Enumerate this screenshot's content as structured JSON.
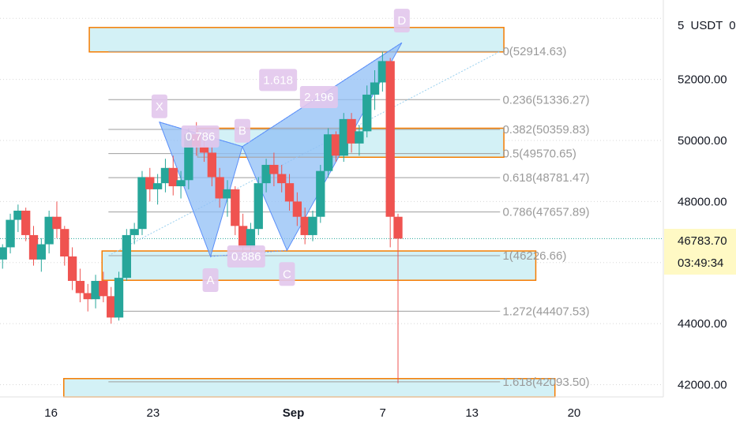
{
  "colors": {
    "up": "#26a69a",
    "down": "#ef5350",
    "zone_fill": "#d3f1f6",
    "zone_border": "#f57c00",
    "harmonic_fill": "#90bff5",
    "harmonic_stroke": "#5b8ff9",
    "point_label_bg": "#e2c7ec",
    "ratio_label_bg": "#e2c7ec",
    "fib_line": "#9e9e9e",
    "grid": "#d8d8d8",
    "last_price_bg": "#fff9c4"
  },
  "chart_data": {
    "type": "candlestick",
    "currency_label": "USDT",
    "currency_prefix": "5",
    "currency_suffix": "0",
    "y_axis": {
      "range": [
        41600,
        54600
      ],
      "ticks": [
        {
          "value": 52000,
          "label": "52000.00"
        },
        {
          "value": 50000,
          "label": "50000.00"
        },
        {
          "value": 48000,
          "label": "48000.00"
        },
        {
          "value": 44000,
          "label": "44000.00"
        },
        {
          "value": 42000,
          "label": "42000.00"
        }
      ]
    },
    "x_axis": {
      "range": [
        0,
        52
      ],
      "ticks": [
        {
          "x": 4,
          "label": "16",
          "bold": false
        },
        {
          "x": 12,
          "label": "23",
          "bold": false
        },
        {
          "x": 23,
          "label": "Sep",
          "bold": true
        },
        {
          "x": 30,
          "label": "7",
          "bold": false
        },
        {
          "x": 37,
          "label": "13",
          "bold": false
        },
        {
          "x": 45,
          "label": "20",
          "bold": false
        }
      ]
    },
    "last_price": {
      "value": 46783.7,
      "label": "46783.70",
      "countdown": "03:49:34"
    },
    "fib_levels": [
      {
        "ratio": "0",
        "price": 52914.63,
        "label": "0(52914.63)"
      },
      {
        "ratio": "0.236",
        "price": 51336.27,
        "label": "0.236(51336.27)"
      },
      {
        "ratio": "0.382",
        "price": 50359.83,
        "label": "0.382(50359.83)"
      },
      {
        "ratio": "0.5",
        "price": 49570.65,
        "label": "0.5(49570.65)"
      },
      {
        "ratio": "0.618",
        "price": 48781.47,
        "label": "0.618(48781.47)"
      },
      {
        "ratio": "0.786",
        "price": 47657.89,
        "label": "0.786(47657.89)"
      },
      {
        "ratio": "1",
        "price": 46226.66,
        "label": "1(46226.66)"
      },
      {
        "ratio": "1.272",
        "price": 44407.53,
        "label": "1.272(44407.53)"
      },
      {
        "ratio": "1.618",
        "price": 42093.5,
        "label": "1.618(42093.50)"
      }
    ],
    "zones": [
      {
        "x1": 7,
        "x2": 39.5,
        "y_top": 53700,
        "y_bottom": 52900
      },
      {
        "x1": 15.5,
        "x2": 39.5,
        "y_top": 50400,
        "y_bottom": 49450
      },
      {
        "x1": 8,
        "x2": 42,
        "y_top": 46380,
        "y_bottom": 45420
      },
      {
        "x1": 5,
        "x2": 43.5,
        "y_top": 42200,
        "y_bottom": 41600
      }
    ],
    "harmonic_pattern": {
      "points": [
        {
          "name": "X",
          "x": 12.5,
          "price": 50600
        },
        {
          "name": "A",
          "x": 16.5,
          "price": 46200
        },
        {
          "name": "B",
          "x": 19,
          "price": 49800
        },
        {
          "name": "C",
          "x": 22.5,
          "price": 46400
        },
        {
          "name": "D",
          "x": 31.5,
          "price": 53200
        }
      ],
      "ratios": [
        {
          "label": "0.786",
          "x": 15.7,
          "price": 50130
        },
        {
          "label": "0.886",
          "x": 19.3,
          "price": 46200
        },
        {
          "label": "1.618",
          "x": 21.8,
          "price": 51980
        },
        {
          "label": "2.196",
          "x": 25,
          "price": 51420
        }
      ]
    },
    "candles": [
      [
        46100,
        46600,
        45800,
        46500
      ],
      [
        46500,
        47600,
        46300,
        47400
      ],
      [
        47400,
        47900,
        47000,
        47700
      ],
      [
        47700,
        47800,
        46700,
        46900
      ],
      [
        46900,
        47200,
        45900,
        46100
      ],
      [
        46100,
        46800,
        45700,
        46600
      ],
      [
        46600,
        47700,
        46300,
        47500
      ],
      [
        47500,
        48000,
        46800,
        47100
      ],
      [
        47100,
        47200,
        45900,
        46200
      ],
      [
        46200,
        46500,
        45100,
        45400
      ],
      [
        45400,
        45800,
        44700,
        45000
      ],
      [
        45000,
        45300,
        44400,
        44800
      ],
      [
        44800,
        45600,
        44500,
        45400
      ],
      [
        45400,
        45700,
        44700,
        44900
      ],
      [
        44900,
        45200,
        44000,
        44200
      ],
      [
        44200,
        45700,
        44100,
        45500
      ],
      [
        45500,
        47100,
        45400,
        46900
      ],
      [
        46900,
        47300,
        46600,
        47100
      ],
      [
        47100,
        49000,
        46900,
        48800
      ],
      [
        48800,
        49100,
        48000,
        48400
      ],
      [
        48400,
        48900,
        47900,
        48600
      ],
      [
        48600,
        49400,
        48300,
        49100
      ],
      [
        49100,
        49500,
        48200,
        48500
      ],
      [
        48500,
        49000,
        48100,
        48700
      ],
      [
        48700,
        50400,
        48400,
        50200
      ],
      [
        50200,
        50600,
        49500,
        49800
      ],
      [
        49800,
        50300,
        49300,
        49600
      ],
      [
        49600,
        49800,
        48500,
        48800
      ],
      [
        48800,
        49100,
        47800,
        48100
      ],
      [
        48100,
        48700,
        47500,
        48400
      ],
      [
        48400,
        48500,
        46900,
        47200
      ],
      [
        47200,
        47600,
        46300,
        46500
      ],
      [
        46500,
        47300,
        46200,
        47100
      ],
      [
        47100,
        48800,
        46900,
        48600
      ],
      [
        48600,
        49400,
        48300,
        49200
      ],
      [
        49200,
        49600,
        48500,
        48900
      ],
      [
        48900,
        49200,
        48300,
        48600
      ],
      [
        48600,
        48900,
        47700,
        48000
      ],
      [
        48000,
        48300,
        47200,
        47500
      ],
      [
        47500,
        47800,
        46600,
        46900
      ],
      [
        46900,
        47700,
        46700,
        47500
      ],
      [
        47500,
        49200,
        47300,
        49000
      ],
      [
        49000,
        50400,
        48800,
        50200
      ],
      [
        50200,
        50300,
        49300,
        49500
      ],
      [
        49500,
        50900,
        49300,
        50700
      ],
      [
        50700,
        50900,
        49600,
        49900
      ],
      [
        49900,
        50500,
        49500,
        50300
      ],
      [
        50300,
        51800,
        50100,
        51500
      ],
      [
        51500,
        52300,
        51000,
        51900
      ],
      [
        51900,
        52900,
        51600,
        52600
      ],
      [
        52600,
        52700,
        46500,
        47500
      ],
      [
        47500,
        47600,
        42050,
        46784
      ]
    ]
  }
}
